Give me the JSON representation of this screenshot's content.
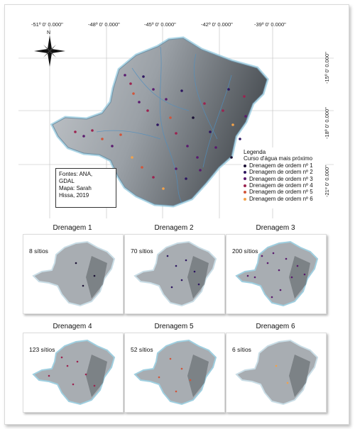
{
  "map": {
    "lon_labels": [
      "-51º 0' 0.000\"",
      "-48º 0' 0.000\"",
      "-45º 0' 0.000\"",
      "-42º 0' 0.000\"",
      "-39º 0' 0.000\""
    ],
    "lat_labels": [
      "-15º 0' 0.000\"",
      "-18º 0' 0.000\"",
      "-21º 0' 0.000\""
    ],
    "north_label": "N",
    "credits": [
      "Fontes: ANA,",
      "GDAL",
      "Mapa: Sarah",
      "Hissa, 2019"
    ],
    "legend": {
      "title": "Legenda",
      "subtitle": "Curso d'água mais próximo",
      "items": [
        {
          "label": "Drenagem de ordem nº 1",
          "color": "#1a1033"
        },
        {
          "label": "Drenagem de ordem nº 2",
          "color": "#2d1660"
        },
        {
          "label": "Drenagem de ordem nº 3",
          "color": "#5a1a6e"
        },
        {
          "label": "Drenagem de ordem nº 4",
          "color": "#9c2350"
        },
        {
          "label": "Drenagem de ordem nº 5",
          "color": "#d1553a"
        },
        {
          "label": "Drenagem de ordem nº 6",
          "color": "#f2a24a"
        }
      ]
    }
  },
  "panels": [
    {
      "title": "Drenagem 1",
      "count": "8 sítios"
    },
    {
      "title": "Drenagem 2",
      "count": "70 sítios"
    },
    {
      "title": "Drenagem 3",
      "count": "200 sítios"
    },
    {
      "title": "Drenagem 4",
      "count": "123 sítios"
    },
    {
      "title": "Drenagem 5",
      "count": "52 sítios"
    },
    {
      "title": "Drenagem 6",
      "count": "6 sítios"
    }
  ]
}
